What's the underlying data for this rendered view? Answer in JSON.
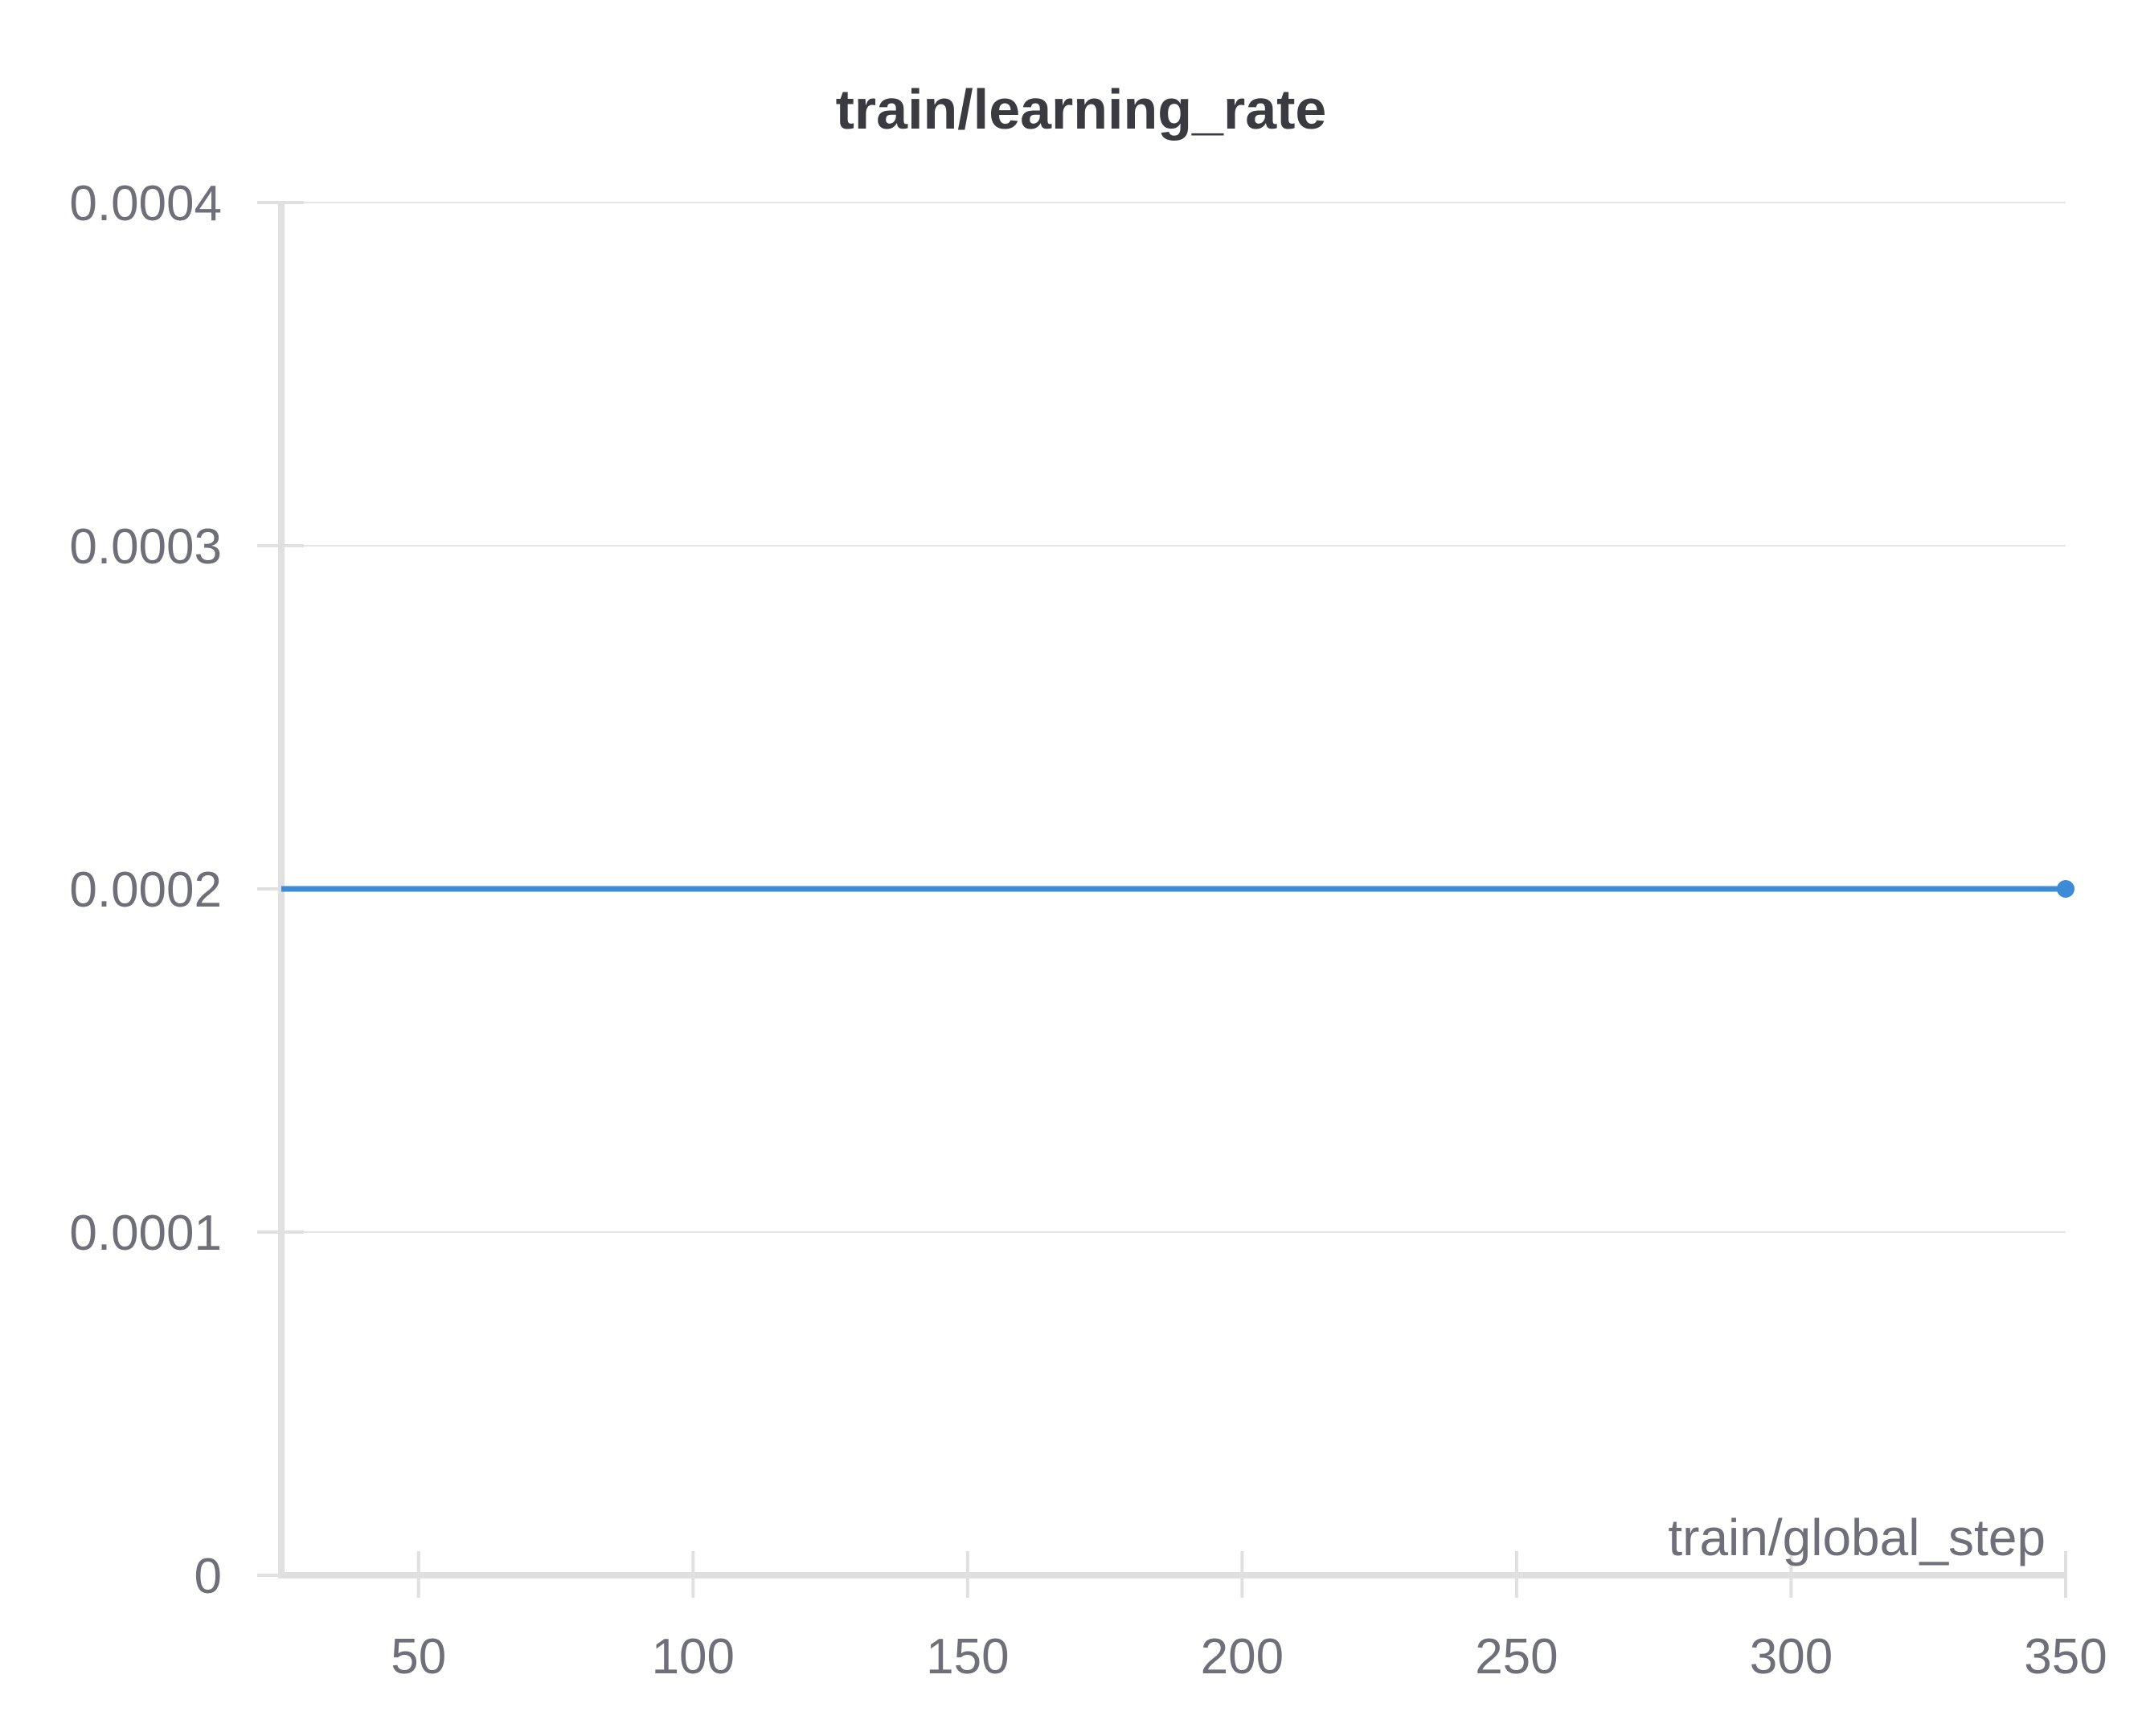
{
  "chart_data": {
    "type": "line",
    "title": "train/learning_rate",
    "xlabel": "train/global_step",
    "ylabel": "",
    "xlim": [
      25,
      350
    ],
    "ylim": [
      0,
      0.0004
    ],
    "x_ticks": [
      50,
      100,
      150,
      200,
      250,
      300,
      350
    ],
    "x_tick_labels": [
      "50",
      "100",
      "150",
      "200",
      "250",
      "300",
      "350"
    ],
    "y_ticks": [
      0,
      0.0001,
      0.0002,
      0.0003,
      0.0004
    ],
    "y_tick_labels": [
      "0",
      "0.0001",
      "0.0002",
      "0.0003",
      "0.0004"
    ],
    "grid": true,
    "legend": "none",
    "series": [
      {
        "color": "#3b8bd6",
        "x": [
          25,
          50,
          100,
          150,
          200,
          250,
          300,
          350
        ],
        "y": [
          0.0002,
          0.0002,
          0.0002,
          0.0002,
          0.0002,
          0.0002,
          0.0002,
          0.0002
        ]
      }
    ]
  },
  "colors": {
    "gridline": "#e6e6e6",
    "axis": "#e0e0e0",
    "text": "#6e6f78",
    "title": "#3a3b40"
  }
}
